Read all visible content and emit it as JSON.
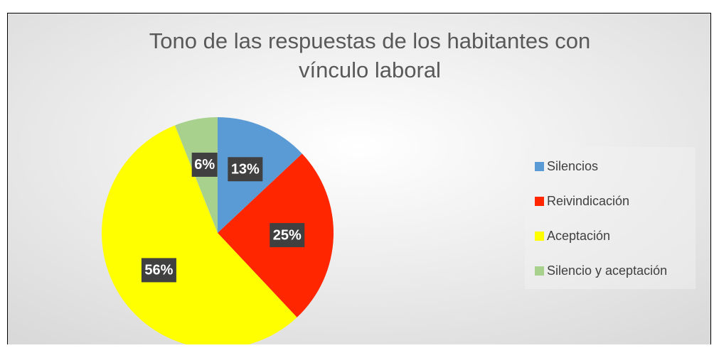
{
  "chart_data": {
    "type": "pie",
    "title": [
      "Tono de las respuestas de los habitantes con",
      "vínculo laboral"
    ],
    "categories": [
      "Silencios",
      "Reivindicación",
      "Aceptación",
      "Silencio y aceptación"
    ],
    "values": [
      13,
      25,
      56,
      6
    ],
    "value_labels": [
      "13%",
      "25%",
      "56%",
      "6%"
    ],
    "colors": [
      "#5b9bd5",
      "#ff2600",
      "#ffff00",
      "#a9d18e"
    ],
    "legend": "right"
  }
}
